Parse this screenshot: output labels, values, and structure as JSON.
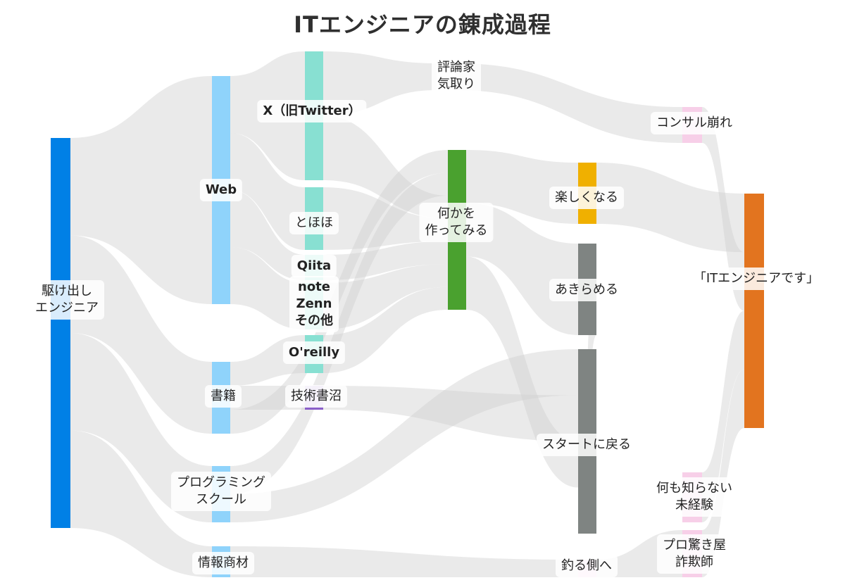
{
  "title": "ITエンジニアの錬成過程",
  "colors": {
    "flow": "#d0d0d0",
    "blue": "#0080e6",
    "light_blue": "#8fd3fb",
    "teal": "#88e0d2",
    "purple": "#8a5ec9",
    "green": "#4aa12f",
    "yellow": "#f0b000",
    "gray": "#7f8482",
    "pink": "#f7cfe8",
    "orange": "#e2741f"
  },
  "nodes": [
    {
      "id": "kakedashi",
      "label": "駆け出し\nエンジニア",
      "bold": false
    },
    {
      "id": "web",
      "label": "Web",
      "bold": true
    },
    {
      "id": "shoseki",
      "label": "書籍",
      "bold": false
    },
    {
      "id": "school",
      "label": "プログラミング\nスクール",
      "bold": false
    },
    {
      "id": "joho",
      "label": "情報商材",
      "bold": false
    },
    {
      "id": "x",
      "label": "X（旧Twitter）",
      "bold": true
    },
    {
      "id": "tohoho",
      "label": "とほほ",
      "bold": false
    },
    {
      "id": "qiita",
      "label": "Qiita",
      "bold": true
    },
    {
      "id": "note",
      "label": "note\nZenn\nその他",
      "bold": true
    },
    {
      "id": "oreilly",
      "label": "O'reilly",
      "bold": true
    },
    {
      "id": "numa",
      "label": "技術書沼",
      "bold": false
    },
    {
      "id": "hyoron",
      "label": "評論家\n気取り",
      "bold": false
    },
    {
      "id": "nanika",
      "label": "何かを\n作ってみる",
      "bold": false
    },
    {
      "id": "tanoshiku",
      "label": "楽しくなる",
      "bold": false
    },
    {
      "id": "akirameru",
      "label": "あきらめる",
      "bold": false
    },
    {
      "id": "start",
      "label": "スタートに戻る",
      "bold": false
    },
    {
      "id": "tsuru",
      "label": "釣る側へ",
      "bold": false
    },
    {
      "id": "consul",
      "label": "コンサル崩れ",
      "bold": false
    },
    {
      "id": "it",
      "label": "「ITエンジニアです」",
      "bold": false
    },
    {
      "id": "mikeiken",
      "label": "何も知らない\n未経験",
      "bold": false
    },
    {
      "id": "pro",
      "label": "プロ驚き屋\n詐欺師",
      "bold": false
    }
  ],
  "links": [
    [
      "kakedashi",
      "web"
    ],
    [
      "kakedashi",
      "shoseki"
    ],
    [
      "kakedashi",
      "school"
    ],
    [
      "kakedashi",
      "joho"
    ],
    [
      "web",
      "x"
    ],
    [
      "web",
      "tohoho"
    ],
    [
      "web",
      "qiita"
    ],
    [
      "web",
      "note"
    ],
    [
      "shoseki",
      "oreilly"
    ],
    [
      "shoseki",
      "numa"
    ],
    [
      "shoseki",
      "nanika"
    ],
    [
      "school",
      "nanika"
    ],
    [
      "school",
      "start"
    ],
    [
      "joho",
      "tsuru"
    ],
    [
      "x",
      "hyoron"
    ],
    [
      "x",
      "nanika"
    ],
    [
      "tohoho",
      "nanika"
    ],
    [
      "qiita",
      "nanika"
    ],
    [
      "note",
      "nanika"
    ],
    [
      "oreilly",
      "nanika"
    ],
    [
      "numa",
      "start"
    ],
    [
      "hyoron",
      "consul"
    ],
    [
      "nanika",
      "tanoshiku"
    ],
    [
      "nanika",
      "akirameru"
    ],
    [
      "nanika",
      "start"
    ],
    [
      "tanoshiku",
      "it"
    ],
    [
      "akirameru",
      "start"
    ],
    [
      "consul",
      "it"
    ],
    [
      "mikeiken",
      "it"
    ],
    [
      "pro",
      "it"
    ],
    [
      "tsuru",
      "pro"
    ]
  ]
}
